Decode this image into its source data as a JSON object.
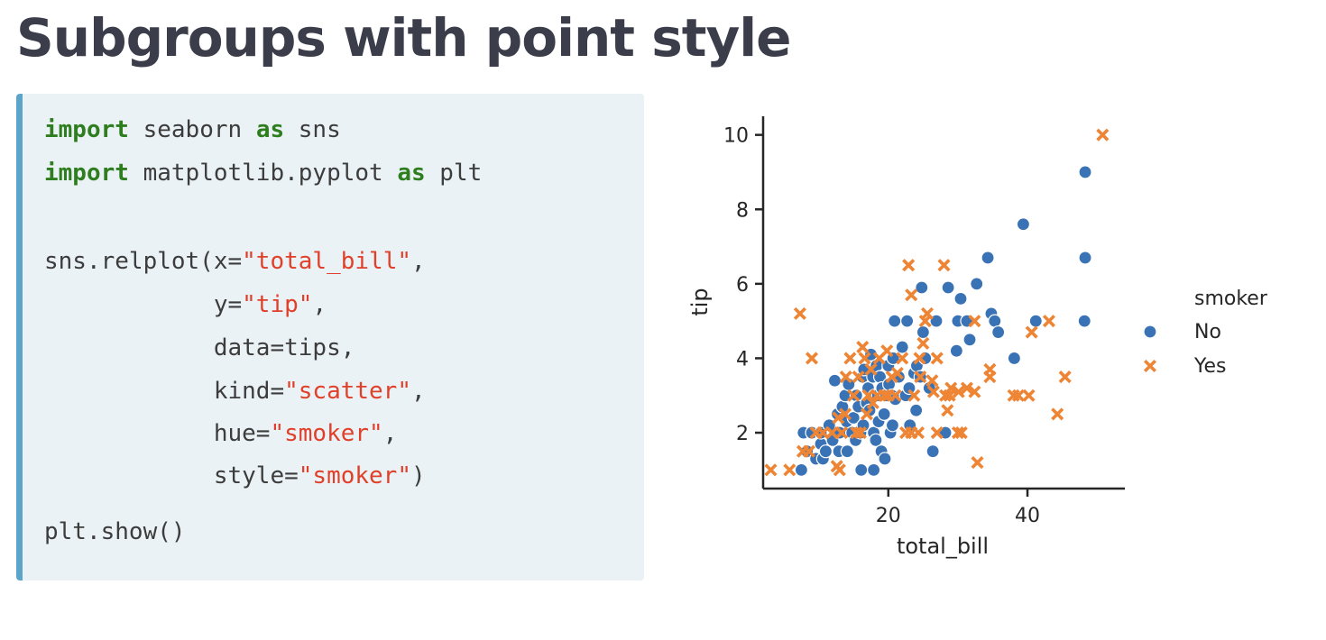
{
  "slide": {
    "title": "Subgroups with point style"
  },
  "code": {
    "lines": [
      [
        {
          "t": "import",
          "c": "kw"
        },
        {
          "t": " seaborn ",
          "c": "plain"
        },
        {
          "t": "as",
          "c": "kw"
        },
        {
          "t": " sns",
          "c": "plain"
        }
      ],
      [
        {
          "t": "import",
          "c": "kw"
        },
        {
          "t": " matplotlib.pyplot ",
          "c": "plain"
        },
        {
          "t": "as",
          "c": "kw"
        },
        {
          "t": " plt",
          "c": "plain"
        }
      ],
      [
        {
          "t": "sns.relplot(x=",
          "c": "plain"
        },
        {
          "t": "\"total_bill\"",
          "c": "str"
        },
        {
          "t": ",",
          "c": "plain"
        }
      ],
      [
        {
          "t": "            y=",
          "c": "plain"
        },
        {
          "t": "\"tip\"",
          "c": "str"
        },
        {
          "t": ",",
          "c": "plain"
        }
      ],
      [
        {
          "t": "            data=tips,",
          "c": "plain"
        }
      ],
      [
        {
          "t": "            kind=",
          "c": "plain"
        },
        {
          "t": "\"scatter\"",
          "c": "str"
        },
        {
          "t": ",",
          "c": "plain"
        }
      ],
      [
        {
          "t": "            hue=",
          "c": "plain"
        },
        {
          "t": "\"smoker\"",
          "c": "str"
        },
        {
          "t": ",",
          "c": "plain"
        }
      ],
      [
        {
          "t": "            style=",
          "c": "plain"
        },
        {
          "t": "\"smoker\"",
          "c": "str"
        },
        {
          "t": ")",
          "c": "plain"
        }
      ],
      [
        {
          "t": "plt.show()",
          "c": "plain"
        }
      ]
    ]
  },
  "colors": {
    "keyword": "#2e7d1e",
    "string": "#e0402a",
    "code_bg": "#ebf2f5",
    "code_border": "#5aa5c9",
    "no_series": "#3a73b5",
    "yes_series": "#ee8535"
  },
  "chart_data": {
    "type": "scatter",
    "xlabel": "total_bill",
    "ylabel": "tip",
    "xlim": [
      2,
      54
    ],
    "ylim": [
      0.5,
      10.5
    ],
    "xticks": [
      20,
      40
    ],
    "yticks": [
      2,
      4,
      6,
      8,
      10
    ],
    "grid": false,
    "legend": {
      "title": "smoker",
      "placement": "right"
    },
    "series": [
      {
        "name": "No",
        "marker": "circle",
        "color": "#3a73b5",
        "points": [
          [
            7.5,
            1.0
          ],
          [
            7.8,
            2.0
          ],
          [
            8.3,
            1.5
          ],
          [
            9.0,
            2.0
          ],
          [
            9.6,
            1.3
          ],
          [
            10.3,
            1.7
          ],
          [
            10.3,
            2.0
          ],
          [
            10.6,
            1.3
          ],
          [
            11.0,
            1.5
          ],
          [
            11.5,
            2.2
          ],
          [
            12.0,
            1.8
          ],
          [
            12.3,
            3.4
          ],
          [
            12.7,
            2.5
          ],
          [
            12.9,
            1.5
          ],
          [
            13.0,
            2.0
          ],
          [
            13.4,
            2.7
          ],
          [
            13.8,
            3.0
          ],
          [
            14.0,
            2.3
          ],
          [
            14.1,
            1.5
          ],
          [
            14.3,
            3.3
          ],
          [
            14.8,
            2.0
          ],
          [
            15.0,
            2.4
          ],
          [
            15.3,
            1.8
          ],
          [
            15.4,
            3.0
          ],
          [
            15.7,
            2.7
          ],
          [
            16.0,
            2.0
          ],
          [
            16.3,
            3.5
          ],
          [
            16.4,
            2.2
          ],
          [
            16.5,
            3.7
          ],
          [
            16.9,
            2.8
          ],
          [
            17.1,
            3.2
          ],
          [
            17.3,
            2.6
          ],
          [
            17.5,
            4.1
          ],
          [
            17.8,
            3.5
          ],
          [
            17.9,
            2.0
          ],
          [
            18.0,
            3.0
          ],
          [
            18.2,
            1.8
          ],
          [
            18.3,
            3.8
          ],
          [
            18.5,
            3.0
          ],
          [
            18.6,
            2.3
          ],
          [
            18.8,
            3.5
          ],
          [
            19.0,
            1.5
          ],
          [
            19.1,
            3.2
          ],
          [
            19.4,
            2.5
          ],
          [
            19.5,
            1.3
          ],
          [
            19.7,
            3.0
          ],
          [
            20.0,
            3.8
          ],
          [
            20.1,
            3.3
          ],
          [
            20.3,
            2.0
          ],
          [
            20.5,
            3.0
          ],
          [
            20.6,
            2.2
          ],
          [
            20.7,
            4.0
          ],
          [
            20.9,
            5.0
          ],
          [
            21.0,
            2.9
          ],
          [
            21.5,
            3.5
          ],
          [
            22.0,
            4.3
          ],
          [
            22.7,
            5.0
          ],
          [
            22.5,
            3.0
          ],
          [
            23.0,
            3.2
          ],
          [
            23.1,
            2.2
          ],
          [
            23.7,
            3.6
          ],
          [
            24.0,
            2.6
          ],
          [
            24.1,
            3.8
          ],
          [
            24.6,
            3.5
          ],
          [
            24.8,
            5.9
          ],
          [
            25.0,
            4.7
          ],
          [
            25.3,
            4.0
          ],
          [
            25.9,
            3.2
          ],
          [
            26.4,
            1.5
          ],
          [
            26.9,
            5.0
          ],
          [
            28.2,
            2.0
          ],
          [
            28.6,
            5.9
          ],
          [
            29.8,
            4.2
          ],
          [
            30.0,
            5.0
          ],
          [
            30.4,
            5.6
          ],
          [
            31.3,
            5.0
          ],
          [
            31.7,
            4.5
          ],
          [
            32.7,
            6.0
          ],
          [
            34.3,
            6.7
          ],
          [
            34.8,
            5.2
          ],
          [
            35.3,
            5.0
          ],
          [
            35.8,
            4.7
          ],
          [
            38.1,
            4.0
          ],
          [
            39.4,
            7.6
          ],
          [
            41.2,
            5.0
          ],
          [
            48.2,
            5.0
          ],
          [
            48.3,
            6.7
          ],
          [
            48.3,
            9.0
          ],
          [
            16.1,
            1.0
          ],
          [
            17.9,
            1.0
          ]
        ]
      },
      {
        "name": "Yes",
        "marker": "x",
        "color": "#ee8535",
        "points": [
          [
            3.1,
            1.0
          ],
          [
            5.8,
            1.0
          ],
          [
            7.3,
            5.2
          ],
          [
            7.7,
            1.5
          ],
          [
            8.6,
            1.5
          ],
          [
            9.0,
            4.0
          ],
          [
            9.6,
            2.0
          ],
          [
            10.6,
            2.0
          ],
          [
            11.9,
            2.0
          ],
          [
            12.6,
            1.1
          ],
          [
            12.8,
            2.4
          ],
          [
            13.0,
            1.0
          ],
          [
            13.3,
            2.0
          ],
          [
            13.8,
            2.5
          ],
          [
            13.9,
            3.5
          ],
          [
            14.5,
            4.0
          ],
          [
            15.0,
            3.0
          ],
          [
            15.4,
            2.0
          ],
          [
            15.7,
            3.5
          ],
          [
            16.0,
            2.0
          ],
          [
            16.3,
            4.3
          ],
          [
            16.6,
            4.0
          ],
          [
            16.9,
            2.5
          ],
          [
            17.1,
            3.0
          ],
          [
            17.5,
            3.7
          ],
          [
            17.8,
            2.8
          ],
          [
            18.4,
            3.0
          ],
          [
            18.7,
            4.0
          ],
          [
            19.4,
            3.0
          ],
          [
            19.8,
            4.2
          ],
          [
            20.0,
            3.0
          ],
          [
            20.5,
            3.5
          ],
          [
            21.0,
            3.0
          ],
          [
            21.3,
            3.6
          ],
          [
            22.0,
            4.0
          ],
          [
            22.5,
            2.0
          ],
          [
            22.9,
            6.5
          ],
          [
            23.3,
            5.7
          ],
          [
            23.3,
            2.0
          ],
          [
            23.7,
            3.0
          ],
          [
            24.3,
            2.0
          ],
          [
            24.5,
            4.0
          ],
          [
            24.6,
            3.5
          ],
          [
            25.0,
            4.4
          ],
          [
            25.3,
            5.0
          ],
          [
            25.6,
            5.2
          ],
          [
            26.3,
            3.4
          ],
          [
            26.5,
            3.1
          ],
          [
            27.0,
            4.0
          ],
          [
            27.0,
            2.0
          ],
          [
            28.0,
            6.5
          ],
          [
            28.2,
            3.0
          ],
          [
            28.5,
            2.6
          ],
          [
            28.8,
            3.0
          ],
          [
            29.0,
            3.2
          ],
          [
            30.0,
            2.0
          ],
          [
            30.1,
            3.1
          ],
          [
            30.5,
            2.0
          ],
          [
            31.3,
            3.2
          ],
          [
            32.4,
            3.1
          ],
          [
            32.8,
            1.2
          ],
          [
            32.4,
            5.0
          ],
          [
            34.6,
            3.7
          ],
          [
            34.6,
            3.5
          ],
          [
            38.0,
            3.0
          ],
          [
            38.7,
            3.0
          ],
          [
            40.2,
            3.0
          ],
          [
            40.6,
            4.7
          ],
          [
            43.1,
            5.0
          ],
          [
            44.3,
            2.5
          ],
          [
            45.4,
            3.5
          ],
          [
            50.8,
            10.0
          ]
        ]
      }
    ]
  }
}
